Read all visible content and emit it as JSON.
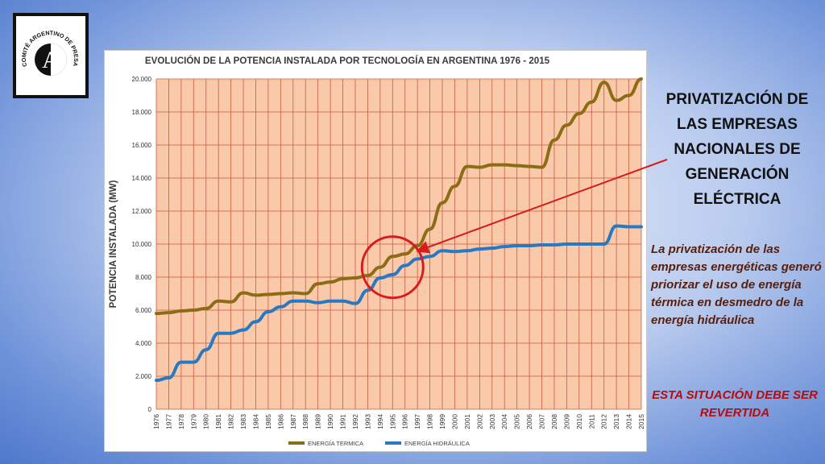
{
  "logo": {
    "text_top": "COMITÉ ARGENTINO DE PRESAS",
    "monogram": "A"
  },
  "headline": "PRIVATIZACIÓN DE LAS EMPRESAS NACIONALES DE GENERACIÓN ELÉCTRICA",
  "body_text": "La privatización de las empresas energéticas generó priorizar el uso de energía térmica en desmedro de la energía hidráulica",
  "call_to_action": "ESTA SITUACIÓN DEBE SER REVERTIDA",
  "colors": {
    "plot_background": "#f9c9a9",
    "grid": "#c75b3e",
    "thermal": "#8a6d14",
    "hydro": "#2779c4",
    "highlight": "#d61c1c"
  },
  "chart_data": {
    "type": "line",
    "title": "EVOLUCIÓN DE LA POTENCIA INSTALADA POR TECNOLOGÍA EN ARGENTINA 1976 - 2015",
    "ylabel": "POTENCIA INSTALADA (MW)",
    "xlabel": "",
    "ylim": [
      0,
      20000
    ],
    "yticks": [
      "0",
      "2.000",
      "4.000",
      "6.000",
      "8.000",
      "10.000",
      "12.000",
      "14.000",
      "16.000",
      "18.000",
      "20.000"
    ],
    "ytick_values": [
      0,
      2000,
      4000,
      6000,
      8000,
      10000,
      12000,
      14000,
      16000,
      18000,
      20000
    ],
    "categories": [
      "1976",
      "1977",
      "1978",
      "1979",
      "1980",
      "1981",
      "1982",
      "1983",
      "1984",
      "1985",
      "1986",
      "1987",
      "1988",
      "1989",
      "1990",
      "1991",
      "1992",
      "1993",
      "1994",
      "1995",
      "1996",
      "1997",
      "1998",
      "1999",
      "2000",
      "2001",
      "2002",
      "2003",
      "2004",
      "2005",
      "2006",
      "2007",
      "2008",
      "2009",
      "2010",
      "2011",
      "2012",
      "2013",
      "2014",
      "2015"
    ],
    "grid": true,
    "legend_position": "bottom",
    "highlight_circle": {
      "x": "1995",
      "y": 8600
    },
    "series": [
      {
        "name": "ENERGÍA TERMICA",
        "values": [
          5800,
          5850,
          5950,
          6000,
          6100,
          6550,
          6500,
          7050,
          6900,
          6950,
          7000,
          7050,
          7000,
          7600,
          7700,
          7900,
          7950,
          8100,
          8600,
          9250,
          9400,
          9900,
          10900,
          12500,
          13500,
          14700,
          14650,
          14800,
          14800,
          14750,
          14700,
          14650,
          16300,
          17200,
          17900,
          18600,
          19800,
          18700,
          19000,
          20000
        ]
      },
      {
        "name": "ENERGÍA HIDRÁULICA",
        "values": [
          1750,
          1900,
          2850,
          2850,
          3600,
          4600,
          4600,
          4800,
          5300,
          5900,
          6200,
          6550,
          6550,
          6450,
          6550,
          6550,
          6400,
          7200,
          7950,
          8150,
          8700,
          9100,
          9250,
          9600,
          9550,
          9600,
          9700,
          9750,
          9850,
          9900,
          9900,
          9950,
          9950,
          10000,
          10000,
          10000,
          10000,
          11100,
          11050,
          11050
        ]
      }
    ]
  }
}
